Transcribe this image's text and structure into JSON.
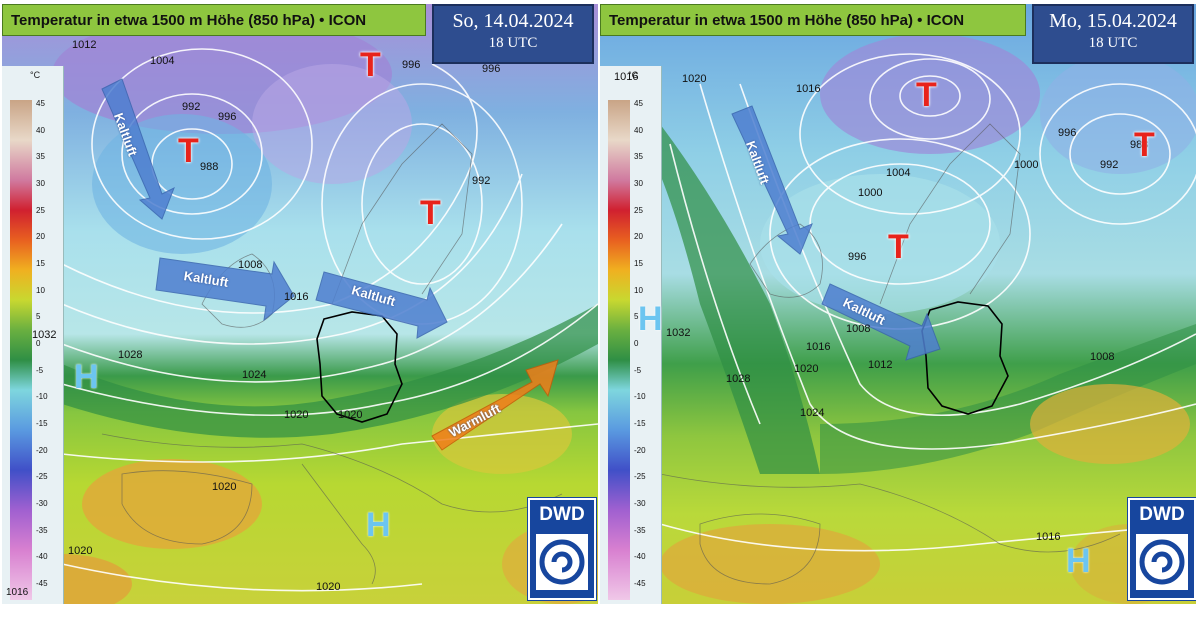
{
  "colors": {
    "kaltluft_arrow": "#4f7fd0",
    "warmluft_arrow": "#f07e1a",
    "tief": "#e8231b",
    "hoch": "#6cc5f0",
    "title_bg": "#8ec63f",
    "date_bg": "#2e4d8f",
    "dwd_bg": "#17469e"
  },
  "legend": {
    "unit": "°C",
    "ticks": [
      "45",
      "40",
      "35",
      "30",
      "25",
      "20",
      "15",
      "10",
      "5",
      "0",
      "-5",
      "-10",
      "-15",
      "-20",
      "-25",
      "-30",
      "-35",
      "-40",
      "-45"
    ]
  },
  "left": {
    "title": "Temperatur in etwa 1500 m Höhe (850 hPa) • ICON",
    "date": "So, 14.04.2024",
    "time": "18 UTC",
    "logo": "DWD",
    "scale_footer": "1016",
    "pressure_labels": [
      "1012",
      "1004",
      "992",
      "996",
      "988",
      "996",
      "996",
      "992",
      "1008",
      "1016",
      "1032",
      "1028",
      "1024",
      "1020",
      "1020",
      "1020",
      "1020",
      "1020"
    ],
    "systems": [
      "T",
      "T",
      "T",
      "H",
      "H"
    ],
    "arrows": [
      "Kaltluft",
      "Kaltluft",
      "Kaltluft",
      "Warmluft"
    ]
  },
  "right": {
    "title": "Temperatur in etwa 1500 m Höhe (850 hPa) • ICON",
    "date": "Mo, 15.04.2024",
    "time": "18 UTC",
    "logo": "DWD",
    "pressure_labels": [
      "1016",
      "1020",
      "1016",
      "1004",
      "1000",
      "996",
      "1008",
      "1016",
      "1012",
      "1020",
      "1024",
      "1028",
      "1032",
      "996",
      "988",
      "992",
      "1000",
      "1008",
      "1016"
    ],
    "systems": [
      "T",
      "T",
      "T",
      "H",
      "H"
    ],
    "arrows": [
      "Kaltluft",
      "Kaltluft"
    ]
  }
}
